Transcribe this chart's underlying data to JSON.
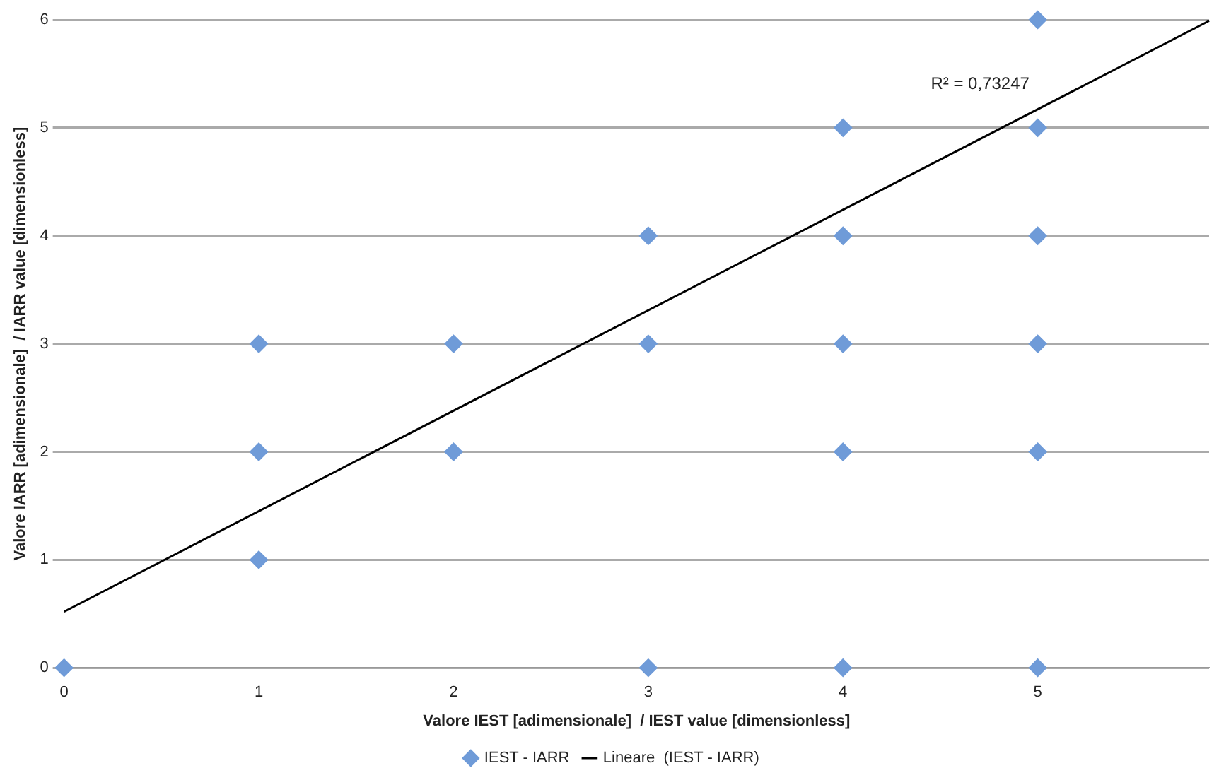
{
  "chart_data": {
    "type": "scatter",
    "xlabel": "Valore IEST [adimensionale]  / IEST value [dimensionless]",
    "ylabel": "Valore IARR [adimensionale]  / IARR value [dimensionless]",
    "xlim": [
      0,
      5.88
    ],
    "ylim": [
      0,
      6
    ],
    "xticks": [
      0,
      1,
      2,
      3,
      4,
      5
    ],
    "yticks": [
      0,
      1,
      2,
      3,
      4,
      5,
      6
    ],
    "grid": "y",
    "legend": "bottom",
    "marker": "diamond",
    "series": [
      {
        "name": "IEST - IARR",
        "color": "#6f9bd8",
        "x": [
          0,
          1,
          1,
          1,
          2,
          2,
          3,
          3,
          3,
          4,
          4,
          4,
          4,
          4,
          5,
          5,
          5,
          5,
          5,
          5
        ],
        "values": [
          0,
          1,
          2,
          3,
          2,
          3,
          0,
          3,
          4,
          0,
          2,
          3,
          4,
          5,
          0,
          2,
          3,
          4,
          5,
          6
        ]
      },
      {
        "name": "Lineare  (IEST - IARR)",
        "type": "line",
        "color": "#000000",
        "marker": "none",
        "x": [
          0,
          5.88
        ],
        "values": [
          0.52,
          5.99
        ]
      }
    ],
    "annotations": [
      "R² = 0,73247"
    ]
  }
}
